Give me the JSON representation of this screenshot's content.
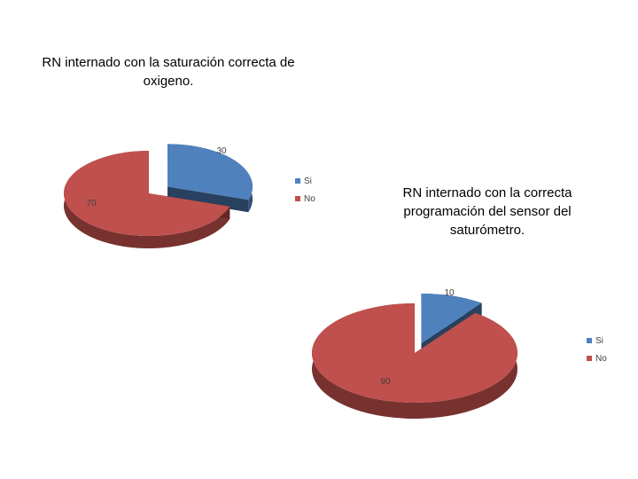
{
  "chart_data": [
    {
      "type": "pie",
      "title": "RN internado  con la saturación correcta de oxigeno.",
      "categories": [
        "Si",
        "No"
      ],
      "values": [
        30,
        70
      ],
      "data_labels": [
        "30",
        "70"
      ],
      "legend_position": "right",
      "colors": [
        "#4f81bd",
        "#c0504d"
      ]
    },
    {
      "type": "pie",
      "title": "RN internado  con la correcta programación del sensor del saturómetro.",
      "categories": [
        "Si",
        "No"
      ],
      "values": [
        10,
        90
      ],
      "data_labels": [
        "10",
        "90"
      ],
      "legend_position": "right",
      "colors": [
        "#4f81bd",
        "#c0504d"
      ]
    }
  ]
}
